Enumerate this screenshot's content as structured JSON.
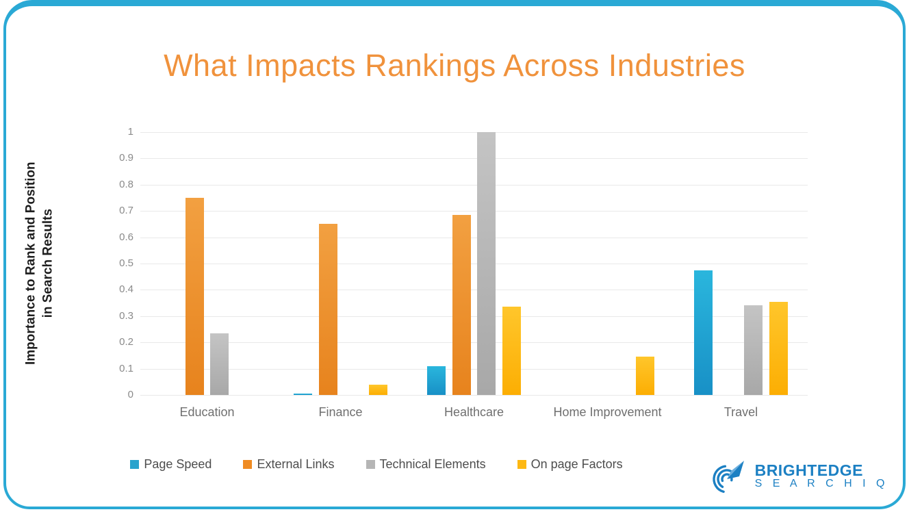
{
  "frame": {
    "accent_color": "#2aa9d5",
    "background": "#ffffff"
  },
  "title": {
    "text": "What Impacts Rankings Across Industries",
    "color": "#f0923c"
  },
  "ylabel_lines": [
    "Importance to Rank and Position",
    "in Search Results"
  ],
  "chart_data": {
    "type": "bar",
    "title": "What Impacts Rankings Across Industries",
    "categories": [
      "Education",
      "Finance",
      "Healthcare",
      "Home Improvement",
      "Travel"
    ],
    "series": [
      {
        "name": "Page Speed",
        "color": "#29a3cd",
        "color_top": "#2ab6dd",
        "color_bottom": "#1890c6",
        "values": [
          0,
          0.005,
          0.11,
          0,
          0.475
        ]
      },
      {
        "name": "External Links",
        "color": "#ef8b22",
        "color_top": "#f2a041",
        "color_bottom": "#e7831d",
        "values": [
          0.75,
          0.65,
          0.685,
          0,
          0
        ]
      },
      {
        "name": "Technical Elements",
        "color": "#b5b5b5",
        "color_top": "#c4c4c4",
        "color_bottom": "#a8a8a8",
        "values": [
          0.235,
          0,
          1.0,
          0,
          0.34
        ]
      },
      {
        "name": "On page Factors",
        "color": "#fdb813",
        "color_top": "#ffc62b",
        "color_bottom": "#fcae03",
        "values": [
          0,
          0.04,
          0.335,
          0.145,
          0.355
        ]
      }
    ],
    "xlabel": "",
    "ylabel": "Importance to Rank and Position in Search Results",
    "ylim": [
      0,
      1
    ],
    "yticks": [
      "1",
      "0.9",
      "0.8",
      "0.7",
      "0.6",
      "0.5",
      "0.4",
      "0.3",
      "0.2",
      "0.1",
      "0"
    ],
    "grid": true,
    "legend_position": "bottom"
  },
  "logo": {
    "brand": "BRIGHTEDGE",
    "product": "S E A R C H I Q",
    "color": "#1c80c3"
  }
}
